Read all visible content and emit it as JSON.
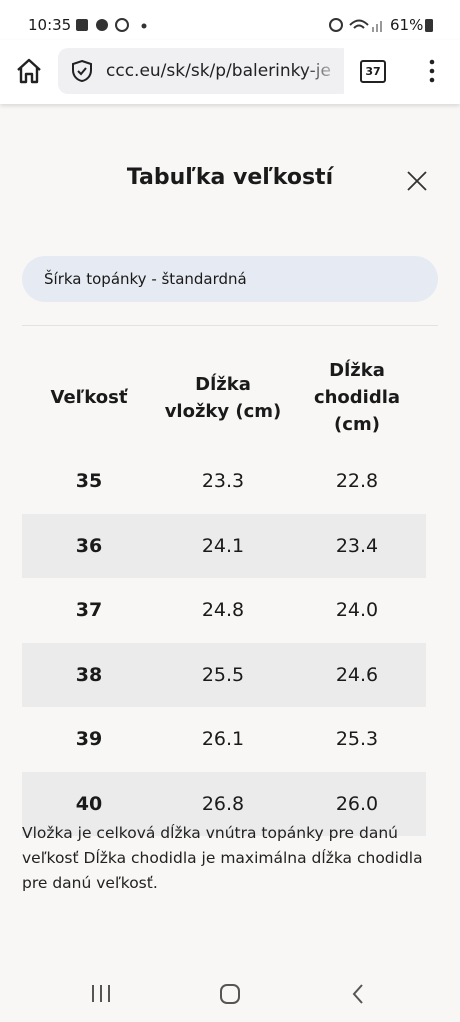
{
  "status_bar": {
    "time": "10:35",
    "battery": "61%"
  },
  "browser": {
    "url": "ccc.eu/sk/sk/p/balerinky-je",
    "tabs": "37"
  },
  "modal": {
    "title": "Tabuľka veľkostí",
    "width_option": "Šírka topánky - štandardná",
    "table": {
      "headers": [
        "Veľkosť",
        "Dĺžka vložky (cm)",
        "Dĺžka chodidla (cm)"
      ],
      "rows": [
        [
          "35",
          "23.3",
          "22.8"
        ],
        [
          "36",
          "24.1",
          "23.4"
        ],
        [
          "37",
          "24.8",
          "24.0"
        ],
        [
          "38",
          "25.5",
          "24.6"
        ],
        [
          "39",
          "26.1",
          "25.3"
        ],
        [
          "40",
          "26.8",
          "26.0"
        ]
      ]
    },
    "note": "Vložka je celková dĺžka vnútra topánky pre danú veľkosť Dĺžka chodidla je maximálna dĺžka chodidla pre danú veľkosť."
  }
}
